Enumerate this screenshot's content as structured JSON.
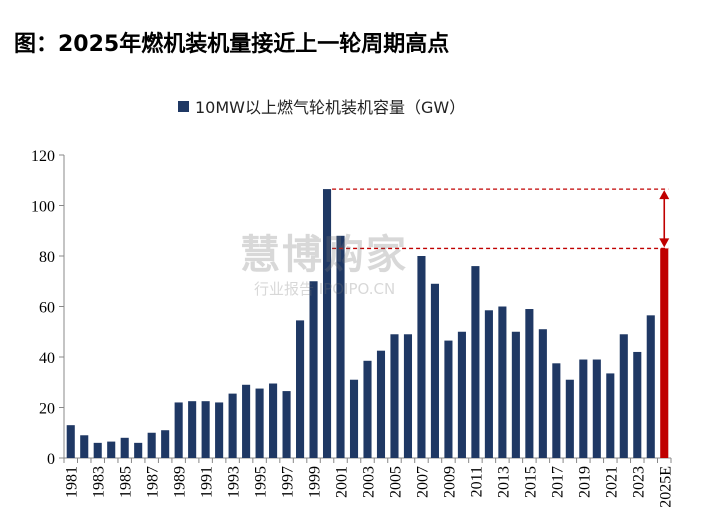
{
  "title": "图：2025年燃机装机量接近上一轮周期高点",
  "watermark": {
    "main": "慧博购家",
    "sub": "行业报告 IPOIPO.CN"
  },
  "colors": {
    "bar": "#1f3864",
    "highlight": "#c00000",
    "annotation": "#c00000"
  },
  "chart_data": {
    "type": "bar",
    "categories": [
      "1981",
      "1982",
      "1983",
      "1984",
      "1985",
      "1986",
      "1987",
      "1988",
      "1989",
      "1990",
      "1991",
      "1992",
      "1993",
      "1994",
      "1995",
      "1996",
      "1997",
      "1998",
      "1999",
      "2000",
      "2001",
      "2002",
      "2003",
      "2004",
      "2005",
      "2006",
      "2007",
      "2008",
      "2009",
      "2010",
      "2011",
      "2012",
      "2013",
      "2014",
      "2015",
      "2016",
      "2017",
      "2018",
      "2019",
      "2020",
      "2021",
      "2022",
      "2023",
      "2024",
      "2025E"
    ],
    "x_tick_labels": [
      "1981",
      "1983",
      "1985",
      "1987",
      "1989",
      "1991",
      "1993",
      "1995",
      "1997",
      "1999",
      "2001",
      "2003",
      "2005",
      "2007",
      "2009",
      "2011",
      "2013",
      "2015",
      "2017",
      "2019",
      "2021",
      "2023",
      "2025E"
    ],
    "series": [
      {
        "name": "10MW以上燃气轮机装机容量（GW）",
        "values": [
          13,
          9,
          6,
          6.5,
          8,
          6,
          10,
          11,
          22,
          22.5,
          22.5,
          22,
          25.5,
          29,
          27.5,
          29.5,
          26.5,
          54.5,
          70,
          106.5,
          88,
          31,
          38.5,
          42.5,
          49,
          49,
          80,
          69,
          46.5,
          50,
          76,
          58.5,
          60,
          50,
          59,
          51,
          37.5,
          31,
          39,
          39,
          33.5,
          49,
          42,
          56.5,
          83
        ]
      }
    ],
    "highlight_category": "2025E",
    "annotation": {
      "from_value": 106.5,
      "to_value": 83,
      "style": "dashed-lines-with-double-arrow"
    },
    "ylim": [
      0,
      120
    ],
    "yticks": [
      0,
      20,
      40,
      60,
      80,
      100,
      120
    ],
    "legend_position": "top-center",
    "grid": false
  }
}
